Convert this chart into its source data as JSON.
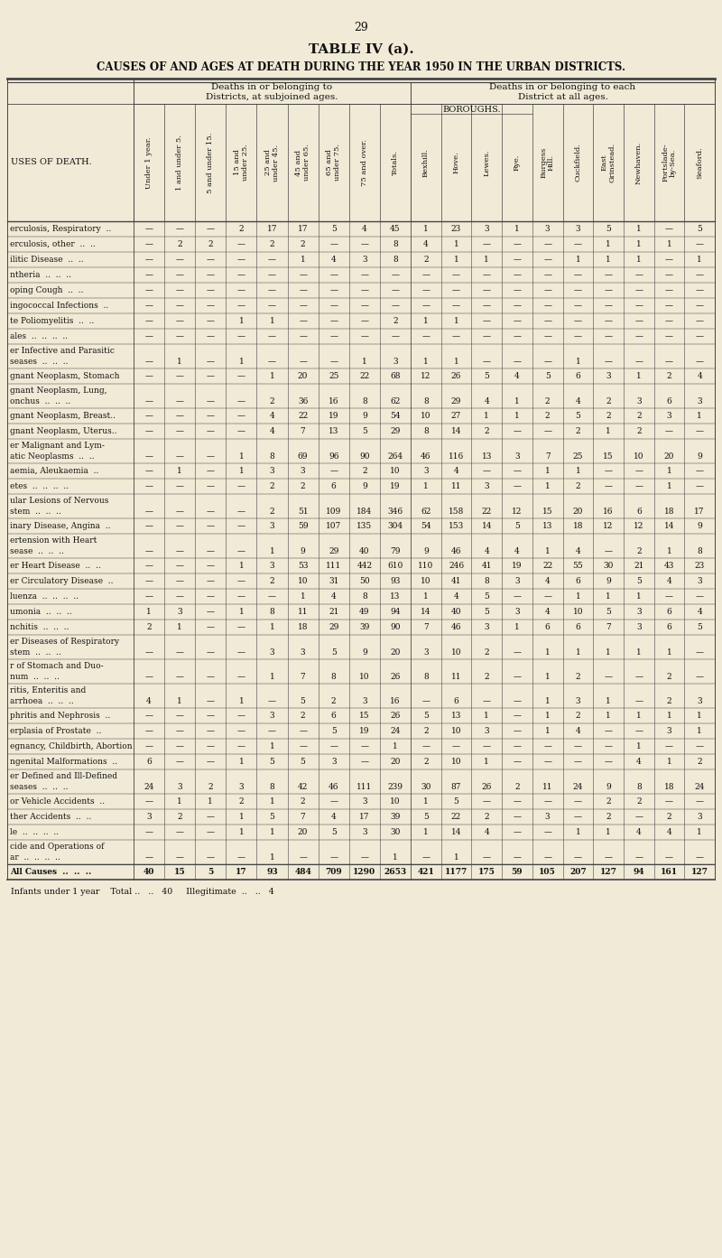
{
  "page_number": "29",
  "table_title": "TABLE IV (a).",
  "subtitle": "CAUSES OF AND AGES AT DEATH DURING THE YEAR 1950 IN THE URBAN DISTRICTS.",
  "col_group1_header": "Deaths in or belonging to\nDistricts, at subjoined ages.",
  "col_group2_header": "Deaths in or belonging to each\nDistrict at all ages.",
  "borough_subheader": "BOROUGHS.",
  "age_headers": [
    "Under 1 year.",
    "1 and under 5.",
    "5 and under 15.",
    "15 and\nunder 25.",
    "25 and\nunder 45.",
    "45 and\nunder 65.",
    "65 and\nunder 75.",
    "75 and over.",
    "Totals."
  ],
  "district_headers": [
    "Bexhill.",
    "Hove.",
    "Lewes.",
    "Rye.",
    "Burgess\nHill.",
    "Cuckfield.",
    "East\nGrinstead.",
    "Newhaven.",
    "Portslade-\nby-Sea.",
    "Seaford."
  ],
  "row_label_header": "USES OF DEATH.",
  "rows": [
    {
      "label": "erculosis, Respiratory  ..",
      "ages": [
        "—",
        "—",
        "—",
        "2",
        "17",
        "17",
        "5",
        "4",
        "45"
      ],
      "districts": [
        "1",
        "23",
        "3",
        "1",
        "3",
        "3",
        "5",
        "1",
        "—",
        "5"
      ],
      "multi": false
    },
    {
      "label": "erculosis, other  ..  ..",
      "ages": [
        "—",
        "2",
        "2",
        "—",
        "2",
        "2",
        "—",
        "—",
        "8"
      ],
      "districts": [
        "4",
        "1",
        "—",
        "—",
        "—",
        "—",
        "1",
        "1",
        "1",
        "—"
      ],
      "multi": false
    },
    {
      "label": "ilitic Disease  ..  ..",
      "ages": [
        "—",
        "—",
        "—",
        "—",
        "—",
        "1",
        "4",
        "3",
        "8"
      ],
      "districts": [
        "2",
        "1",
        "1",
        "—",
        "—",
        "1",
        "1",
        "1",
        "—",
        "1"
      ],
      "multi": false
    },
    {
      "label": "ntheria  ..  ..  ..",
      "ages": [
        "—",
        "—",
        "—",
        "—",
        "—",
        "—",
        "—",
        "—",
        "—"
      ],
      "districts": [
        "—",
        "—",
        "—",
        "—",
        "—",
        "—",
        "—",
        "—",
        "—",
        "—"
      ],
      "multi": false
    },
    {
      "label": "oping Cough  ..  ..",
      "ages": [
        "—",
        "—",
        "—",
        "—",
        "—",
        "—",
        "—",
        "—",
        "—"
      ],
      "districts": [
        "—",
        "—",
        "—",
        "—",
        "—",
        "—",
        "—",
        "—",
        "—",
        "—"
      ],
      "multi": false
    },
    {
      "label": "ingococcal Infections  ..",
      "ages": [
        "—",
        "—",
        "—",
        "—",
        "—",
        "—",
        "—",
        "—",
        "—"
      ],
      "districts": [
        "—",
        "—",
        "—",
        "—",
        "—",
        "—",
        "—",
        "—",
        "—",
        "—"
      ],
      "multi": false
    },
    {
      "label": "te Poliomyelitis  ..  ..",
      "ages": [
        "—",
        "—",
        "—",
        "1",
        "1",
        "—",
        "—",
        "—",
        "2"
      ],
      "districts": [
        "1",
        "1",
        "—",
        "—",
        "—",
        "—",
        "—",
        "—",
        "—",
        "—"
      ],
      "multi": false
    },
    {
      "label": "ales  ..  ..  ..  ..",
      "ages": [
        "—",
        "—",
        "—",
        "—",
        "—",
        "—",
        "—",
        "—",
        "—"
      ],
      "districts": [
        "—",
        "—",
        "—",
        "—",
        "—",
        "—",
        "—",
        "—",
        "—",
        "—"
      ],
      "multi": false
    },
    {
      "label": "er Infective and Parasitic",
      "label2": "seases  ..  ..  ..",
      "ages": [
        "—",
        "1",
        "—",
        "1",
        "—",
        "—",
        "—",
        "1",
        "3"
      ],
      "districts": [
        "1",
        "1",
        "—",
        "—",
        "—",
        "1",
        "—",
        "—",
        "—",
        "—"
      ],
      "multi": true
    },
    {
      "label": "gnant Neoplasm, Stomach",
      "ages": [
        "—",
        "—",
        "—",
        "—",
        "1",
        "20",
        "25",
        "22",
        "68"
      ],
      "districts": [
        "12",
        "26",
        "5",
        "4",
        "5",
        "6",
        "3",
        "1",
        "2",
        "4"
      ],
      "multi": false
    },
    {
      "label": "gnant Neoplasm, Lung,",
      "label2": "onchus  ..  ..  ..",
      "ages": [
        "—",
        "—",
        "—",
        "—",
        "2",
        "36",
        "16",
        "8",
        "62"
      ],
      "districts": [
        "8",
        "29",
        "4",
        "1",
        "2",
        "4",
        "2",
        "3",
        "6",
        "3"
      ],
      "multi": true
    },
    {
      "label": "gnant Neoplasm, Breast..",
      "ages": [
        "—",
        "—",
        "—",
        "—",
        "4",
        "22",
        "19",
        "9",
        "54"
      ],
      "districts": [
        "10",
        "27",
        "1",
        "1",
        "2",
        "5",
        "2",
        "2",
        "3",
        "1"
      ],
      "multi": false
    },
    {
      "label": "gnant Neoplasm, Uterus..",
      "ages": [
        "—",
        "—",
        "—",
        "—",
        "4",
        "7",
        "13",
        "5",
        "29"
      ],
      "districts": [
        "8",
        "14",
        "2",
        "—",
        "—",
        "2",
        "1",
        "2",
        "—",
        "—"
      ],
      "multi": false
    },
    {
      "label": "er Malignant and Lym-",
      "label2": "atic Neoplasms  ..  ..",
      "ages": [
        "—",
        "—",
        "—",
        "1",
        "8",
        "69",
        "96",
        "90",
        "264"
      ],
      "districts": [
        "46",
        "116",
        "13",
        "3",
        "7",
        "25",
        "15",
        "10",
        "20",
        "9"
      ],
      "multi": true
    },
    {
      "label": "aemia, Aleukaemia  ..",
      "ages": [
        "—",
        "1",
        "—",
        "1",
        "3",
        "3",
        "—",
        "2",
        "10"
      ],
      "districts": [
        "3",
        "4",
        "—",
        "—",
        "1",
        "1",
        "—",
        "—",
        "1",
        "—"
      ],
      "multi": false
    },
    {
      "label": "etes  ..  ..  ..  ..",
      "ages": [
        "—",
        "—",
        "—",
        "—",
        "2",
        "2",
        "6",
        "9",
        "19"
      ],
      "districts": [
        "1",
        "11",
        "3",
        "—",
        "1",
        "2",
        "—",
        "—",
        "1",
        "—"
      ],
      "multi": false
    },
    {
      "label": "ular Lesions of Nervous",
      "label2": "stem  ..  ..  ..",
      "ages": [
        "—",
        "—",
        "—",
        "—",
        "2",
        "51",
        "109",
        "184",
        "346"
      ],
      "districts": [
        "62",
        "158",
        "22",
        "12",
        "15",
        "20",
        "16",
        "6",
        "18",
        "17"
      ],
      "multi": true
    },
    {
      "label": "inary Disease, Angina  ..",
      "ages": [
        "—",
        "—",
        "—",
        "—",
        "3",
        "59",
        "107",
        "135",
        "304"
      ],
      "districts": [
        "54",
        "153",
        "14",
        "5",
        "13",
        "18",
        "12",
        "12",
        "14",
        "9"
      ],
      "multi": false
    },
    {
      "label": "ertension with Heart",
      "label2": "sease  ..  ..  ..",
      "ages": [
        "—",
        "—",
        "—",
        "—",
        "1",
        "9",
        "29",
        "40",
        "79"
      ],
      "districts": [
        "9",
        "46",
        "4",
        "4",
        "1",
        "4",
        "—",
        "2",
        "1",
        "8"
      ],
      "multi": true
    },
    {
      "label": "er Heart Disease  ..  ..",
      "ages": [
        "—",
        "—",
        "—",
        "1",
        "3",
        "53",
        "111",
        "442",
        "610"
      ],
      "districts": [
        "110",
        "246",
        "41",
        "19",
        "22",
        "55",
        "30",
        "21",
        "43",
        "23"
      ],
      "multi": false
    },
    {
      "label": "er Circulatory Disease  ..",
      "ages": [
        "—",
        "—",
        "—",
        "—",
        "2",
        "10",
        "31",
        "50",
        "93"
      ],
      "districts": [
        "10",
        "41",
        "8",
        "3",
        "4",
        "6",
        "9",
        "5",
        "4",
        "3"
      ],
      "multi": false
    },
    {
      "label": "luenza  ..  ..  ..  ..",
      "ages": [
        "—",
        "—",
        "—",
        "—",
        "—",
        "1",
        "4",
        "8",
        "13"
      ],
      "districts": [
        "1",
        "4",
        "5",
        "—",
        "—",
        "1",
        "1",
        "1",
        "—",
        "—"
      ],
      "multi": false
    },
    {
      "label": "umonia  ..  ..  ..",
      "ages": [
        "1",
        "3",
        "—",
        "1",
        "8",
        "11",
        "21",
        "49",
        "94"
      ],
      "districts": [
        "14",
        "40",
        "5",
        "3",
        "4",
        "10",
        "5",
        "3",
        "6",
        "4"
      ],
      "multi": false
    },
    {
      "label": "nchitis  ..  ..  ..",
      "ages": [
        "2",
        "1",
        "—",
        "—",
        "1",
        "18",
        "29",
        "39",
        "90"
      ],
      "districts": [
        "7",
        "46",
        "3",
        "1",
        "6",
        "6",
        "7",
        "3",
        "6",
        "5"
      ],
      "multi": false
    },
    {
      "label": "er Diseases of Respiratory",
      "label2": "stem  ..  ..  ..",
      "ages": [
        "—",
        "—",
        "—",
        "—",
        "3",
        "3",
        "5",
        "9",
        "20"
      ],
      "districts": [
        "3",
        "10",
        "2",
        "—",
        "1",
        "1",
        "1",
        "1",
        "1",
        "—"
      ],
      "multi": true
    },
    {
      "label": "r of Stomach and Duo-",
      "label2": "num  ..  ..  ..",
      "ages": [
        "—",
        "—",
        "—",
        "—",
        "1",
        "7",
        "8",
        "10",
        "26"
      ],
      "districts": [
        "8",
        "11",
        "2",
        "—",
        "1",
        "2",
        "—",
        "—",
        "2",
        "—"
      ],
      "multi": true
    },
    {
      "label": "ritis, Enteritis and",
      "label2": "arrhoea  ..  ..  ..",
      "ages": [
        "4",
        "1",
        "—",
        "1",
        "—",
        "5",
        "2",
        "3",
        "16"
      ],
      "districts": [
        "—",
        "6",
        "—",
        "—",
        "1",
        "3",
        "1",
        "—",
        "2",
        "3"
      ],
      "multi": true
    },
    {
      "label": "phritis and Nephrosis  ..",
      "ages": [
        "—",
        "—",
        "—",
        "—",
        "3",
        "2",
        "6",
        "15",
        "26"
      ],
      "districts": [
        "5",
        "13",
        "1",
        "—",
        "1",
        "2",
        "1",
        "1",
        "1",
        "1"
      ],
      "multi": false
    },
    {
      "label": "erplasia of Prostate  ..",
      "ages": [
        "—",
        "—",
        "—",
        "—",
        "—",
        "—",
        "5",
        "19",
        "24"
      ],
      "districts": [
        "2",
        "10",
        "3",
        "—",
        "1",
        "4",
        "—",
        "—",
        "3",
        "1"
      ],
      "multi": false
    },
    {
      "label": "egnancy, Childbirth, Abortion",
      "ages": [
        "—",
        "—",
        "—",
        "—",
        "1",
        "—",
        "—",
        "—",
        "1"
      ],
      "districts": [
        "—",
        "—",
        "—",
        "—",
        "—",
        "—",
        "—",
        "1",
        "—",
        "—"
      ],
      "multi": false
    },
    {
      "label": "ngenital Malformations  ..",
      "ages": [
        "6",
        "—",
        "—",
        "1",
        "5",
        "5",
        "3",
        "—",
        "20"
      ],
      "districts": [
        "2",
        "10",
        "1",
        "—",
        "—",
        "—",
        "—",
        "4",
        "1",
        "2"
      ],
      "multi": false
    },
    {
      "label": "er Defined and Ill-Defined",
      "label2": "seases  ..  ..  ..",
      "ages": [
        "24",
        "3",
        "2",
        "3",
        "8",
        "42",
        "46",
        "111",
        "239"
      ],
      "districts": [
        "30",
        "87",
        "26",
        "2",
        "11",
        "24",
        "9",
        "8",
        "18",
        "24"
      ],
      "multi": true
    },
    {
      "label": "or Vehicle Accidents  ..",
      "ages": [
        "—",
        "1",
        "1",
        "2",
        "1",
        "2",
        "—",
        "3",
        "10"
      ],
      "districts": [
        "1",
        "5",
        "—",
        "—",
        "—",
        "—",
        "2",
        "2",
        "—",
        "—"
      ],
      "multi": false
    },
    {
      "label": "ther Accidents  ..  ..",
      "ages": [
        "3",
        "2",
        "—",
        "1",
        "5",
        "7",
        "4",
        "17",
        "39"
      ],
      "districts": [
        "5",
        "22",
        "2",
        "—",
        "3",
        "—",
        "2",
        "—",
        "2",
        "3"
      ],
      "multi": false
    },
    {
      "label": "le  ..  ..  ..  ..",
      "ages": [
        "—",
        "—",
        "—",
        "1",
        "1",
        "20",
        "5",
        "3",
        "30"
      ],
      "districts": [
        "1",
        "14",
        "4",
        "—",
        "—",
        "1",
        "1",
        "4",
        "4",
        "1"
      ],
      "multi": false
    },
    {
      "label": "cide and Operations of",
      "label2": "ar  ..  ..  ..  ..",
      "ages": [
        "—",
        "—",
        "—",
        "—",
        "1",
        "—",
        "—",
        "—",
        "1"
      ],
      "districts": [
        "—",
        "1",
        "—",
        "—",
        "—",
        "—",
        "—",
        "—",
        "—",
        "—"
      ],
      "multi": true
    },
    {
      "label": "All Causes  ..  ..  ..",
      "ages": [
        "40",
        "15",
        "5",
        "17",
        "93",
        "484",
        "709",
        "1290",
        "2653"
      ],
      "districts": [
        "421",
        "1177",
        "175",
        "59",
        "105",
        "207",
        "127",
        "94",
        "161",
        "127"
      ],
      "multi": false,
      "bold": true
    }
  ],
  "footer": "Infants under 1 year    Total ..   ..   40     Illegitimate  ..   ..   4",
  "bg_color": "#f0ead6",
  "text_color": "#111111",
  "line_color": "#444444"
}
